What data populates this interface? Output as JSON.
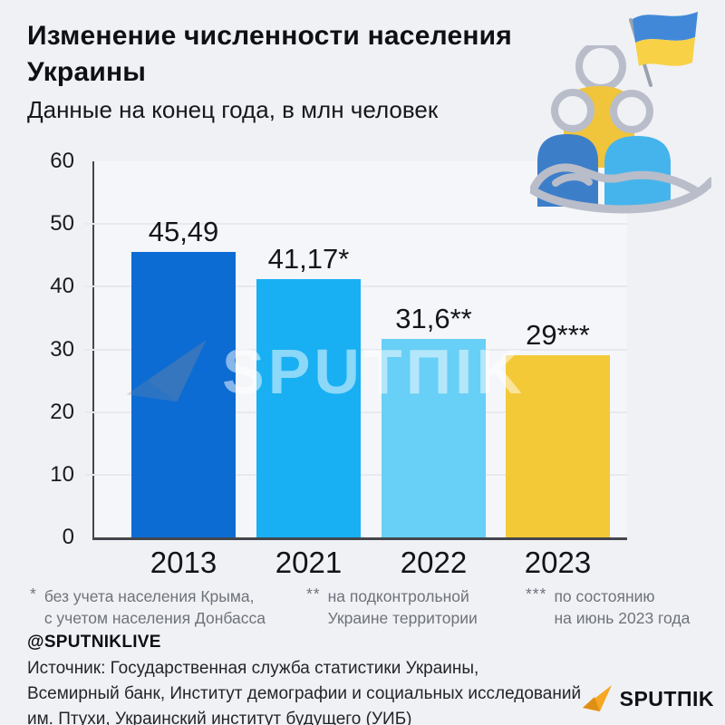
{
  "page": {
    "background": "#f0f1f5"
  },
  "header": {
    "title": "Изменение численности населения Украины",
    "subtitle": "Данные на конец года, в млн человек"
  },
  "chart_data": {
    "type": "bar",
    "title": "Изменение численности населения Украины",
    "subtitle": "Данные на конец года, в млн человек",
    "units": "млн человек",
    "categories": [
      "2013",
      "2021",
      "2022",
      "2023"
    ],
    "values": [
      45.49,
      41.17,
      31.6,
      29
    ],
    "value_labels": [
      "45,49",
      "41,17*",
      "31,6**",
      "29***"
    ],
    "bar_colors": [
      "#0c6cd4",
      "#18b0f2",
      "#68cff6",
      "#f3c937"
    ],
    "xlabel": "",
    "ylabel": "",
    "ylim": [
      0,
      60
    ],
    "yticks": [
      0,
      10,
      20,
      30,
      40,
      50,
      60
    ],
    "grid": true,
    "legend_position": "none"
  },
  "watermark": {
    "text": "SPUTПIK"
  },
  "footnotes": [
    {
      "marker": "*",
      "lines": [
        "без учета населения Крыма,",
        "с учетом населения Донбасса"
      ]
    },
    {
      "marker": "**",
      "lines": [
        "на подконтрольной",
        "Украине территории"
      ]
    },
    {
      "marker": "***",
      "lines": [
        "по состоянию",
        "на июнь 2023 года"
      ]
    }
  ],
  "footer": {
    "handle": "@SPUTNIKLIVE",
    "source_lines": [
      "Источник: Государственная служба статистики Украины,",
      "Всемирный банк, Институт демографии и социальных исследований",
      "им. Птухи, Украинский институт будущего (УИБ)"
    ],
    "logo_text": "SPUTПIK"
  },
  "icons": {
    "flag": {
      "name": "ukraine-flag-icon",
      "blue": "#4189d8",
      "yellow": "#f8d147",
      "pole": "#9aa2af"
    },
    "people": {
      "name": "people-in-hand-icon",
      "left_body": "#3d7ec9",
      "middle_body": "#f0c53c",
      "right_body": "#46b4ec",
      "outline": "#b8bdc9"
    },
    "logo_plane": {
      "name": "sputnik-plane-icon",
      "orange": "#f7a823",
      "dark_orange": "#e08f15"
    }
  }
}
